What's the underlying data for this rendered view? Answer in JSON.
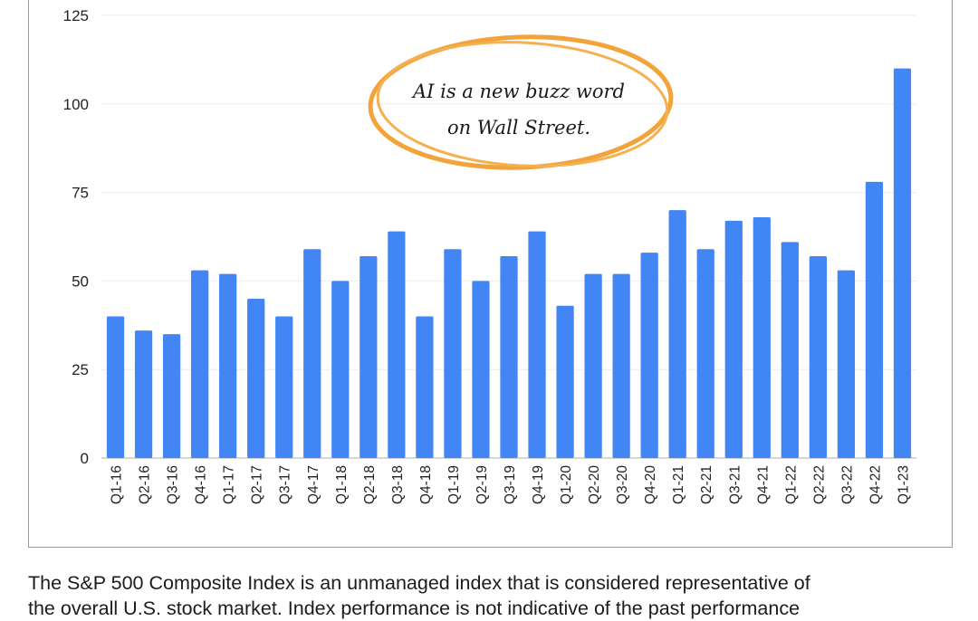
{
  "chart_data": {
    "type": "bar",
    "categories": [
      "Q1-16",
      "Q2-16",
      "Q3-16",
      "Q4-16",
      "Q1-17",
      "Q2-17",
      "Q3-17",
      "Q4-17",
      "Q1-18",
      "Q2-18",
      "Q3-18",
      "Q4-18",
      "Q1-19",
      "Q2-19",
      "Q3-19",
      "Q4-19",
      "Q1-20",
      "Q2-20",
      "Q3-20",
      "Q4-20",
      "Q1-21",
      "Q2-21",
      "Q3-21",
      "Q4-21",
      "Q1-22",
      "Q2-22",
      "Q3-22",
      "Q4-22",
      "Q1-23"
    ],
    "values": [
      40,
      36,
      35,
      53,
      52,
      45,
      40,
      59,
      50,
      57,
      64,
      40,
      59,
      50,
      57,
      64,
      43,
      52,
      52,
      58,
      70,
      59,
      67,
      68,
      61,
      57,
      53,
      78,
      110
    ],
    "yticks": [
      0,
      25,
      50,
      75,
      100,
      125
    ],
    "ylim": [
      0,
      125
    ],
    "grid": true,
    "bar_color": "#4285f4",
    "annotation": {
      "lines": [
        "AI is a new buzz word",
        "on Wall Street."
      ],
      "highlight_color": "#f2a33a"
    }
  },
  "caption": {
    "lines": [
      "The S&P 500 Composite Index is an unmanaged index that is considered representative of",
      "the overall U.S. stock market. Index performance is not indicative of the past performance"
    ]
  }
}
